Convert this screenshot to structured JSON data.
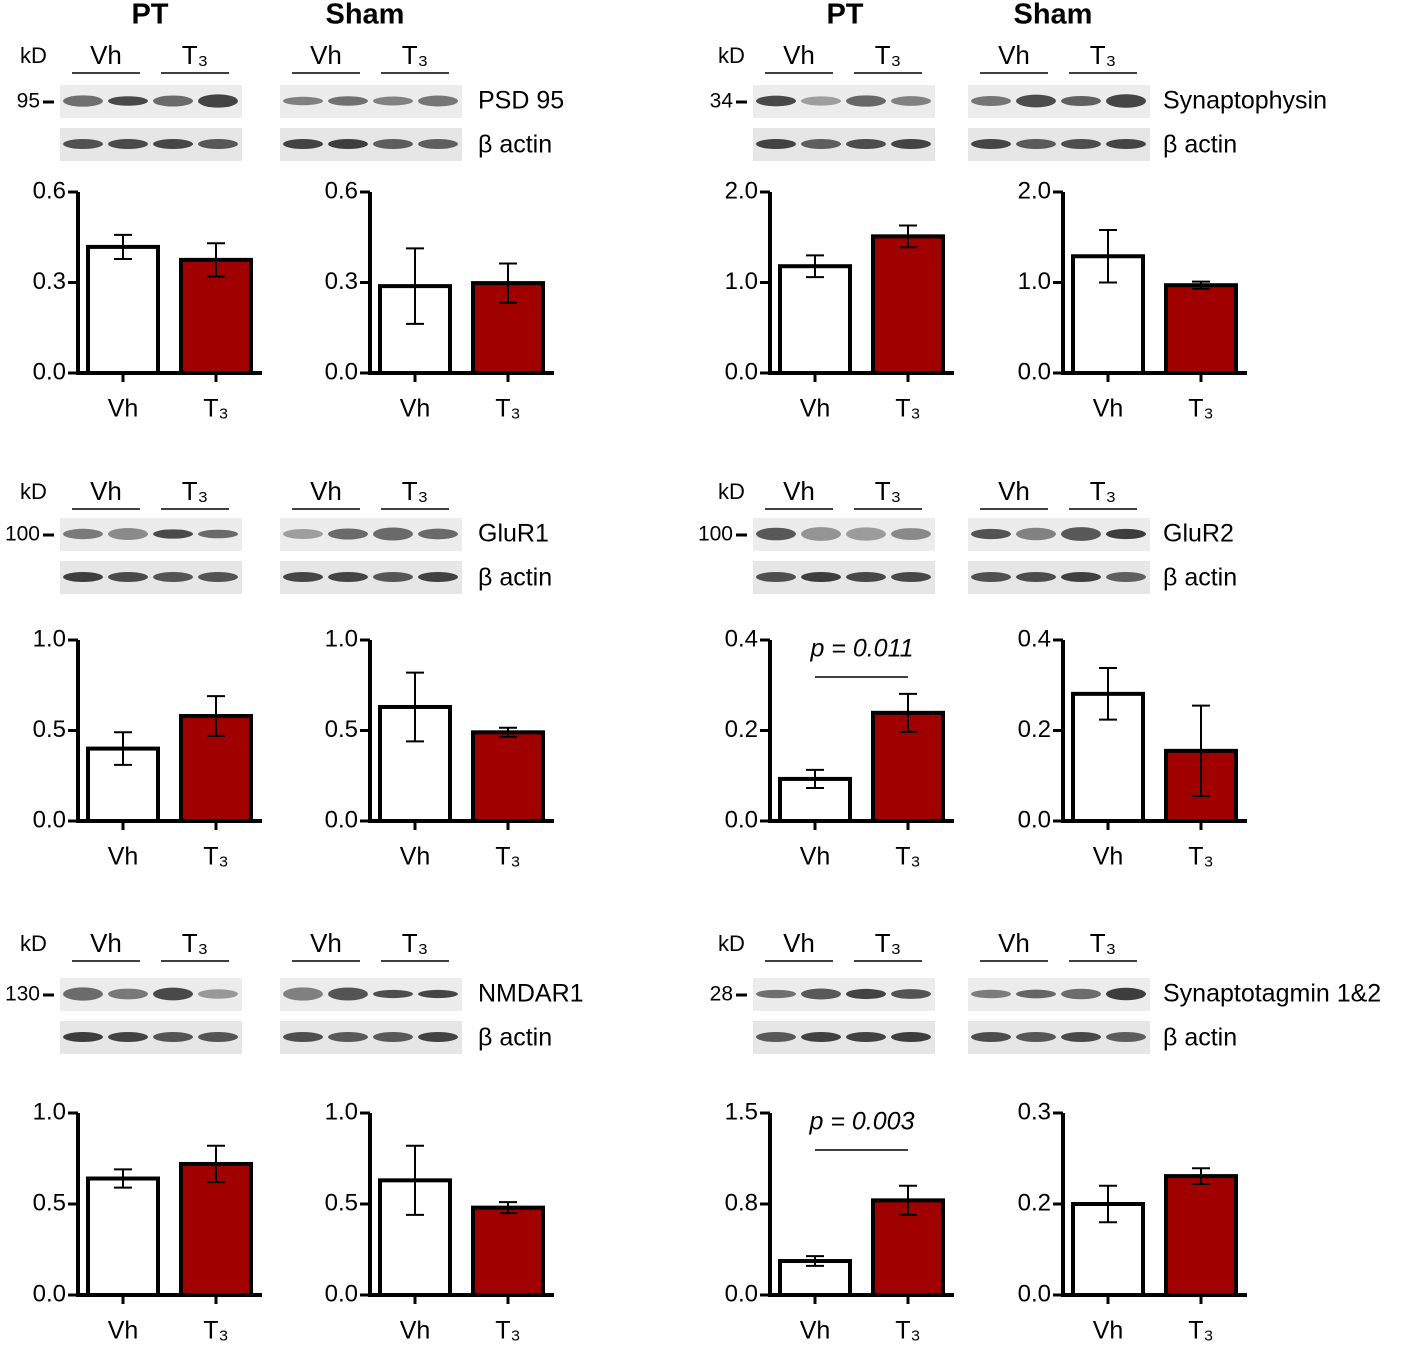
{
  "headers": [
    "PT",
    "Sham",
    "PT",
    "Sham"
  ],
  "blots": [
    {
      "kd": "kD",
      "marker": "95",
      "lanes": [
        "Vh",
        "T₃",
        "Vh",
        "T₃"
      ],
      "protein": "PSD 95",
      "loading": "β actin"
    },
    {
      "kd": "kD",
      "marker": "34",
      "lanes": [
        "Vh",
        "T₃",
        "Vh",
        "T₃"
      ],
      "protein": "Synaptophysin",
      "loading": "β actin"
    },
    {
      "kd": "kD",
      "marker": "100",
      "lanes": [
        "Vh",
        "T₃",
        "Vh",
        "T₃"
      ],
      "protein": "GluR1",
      "loading": "β actin"
    },
    {
      "kd": "kD",
      "marker": "100",
      "lanes": [
        "Vh",
        "T₃",
        "Vh",
        "T₃"
      ],
      "protein": "GluR2",
      "loading": "β actin"
    },
    {
      "kd": "kD",
      "marker": "130",
      "lanes": [
        "Vh",
        "T₃",
        "Vh",
        "T₃"
      ],
      "protein": "NMDAR1",
      "loading": "β actin"
    },
    {
      "kd": "kD",
      "marker": "28",
      "lanes": [
        "Vh",
        "T₃",
        "Vh",
        "T₃"
      ],
      "protein": "Synaptotagmin 1&2",
      "loading": "β actin"
    }
  ],
  "chart_data": [
    {
      "type": "bar",
      "categories": [
        "Vh",
        "T₃"
      ],
      "values": [
        0.418,
        0.375
      ],
      "errors": [
        0.04,
        0.055
      ],
      "colors": [
        "#ffffff",
        "#a00000"
      ],
      "ylim": [
        0,
        0.6
      ],
      "yticks": [
        {
          "value": 0,
          "label": "0.0"
        },
        0.3,
        0.6
      ]
    },
    {
      "type": "bar",
      "categories": [
        "Vh",
        "T₃"
      ],
      "values": [
        0.288,
        0.298
      ],
      "errors": [
        0.125,
        0.065
      ],
      "colors": [
        "#ffffff",
        "#a00000"
      ],
      "ylim": [
        0,
        0.6
      ],
      "yticks": [
        {
          "value": 0,
          "label": "0.0"
        },
        0.3,
        0.6
      ]
    },
    {
      "type": "bar",
      "categories": [
        "Vh",
        "T₃"
      ],
      "values": [
        1.18,
        1.51
      ],
      "errors": [
        0.12,
        0.12
      ],
      "colors": [
        "#ffffff",
        "#a00000"
      ],
      "ylim": [
        0,
        2
      ],
      "yticks": [
        {
          "value": 0,
          "label": "0.0"
        },
        {
          "value": 1,
          "label": "1.0"
        },
        {
          "value": 2,
          "label": "2.0"
        }
      ]
    },
    {
      "type": "bar",
      "categories": [
        "Vh",
        "T₃"
      ],
      "values": [
        1.29,
        0.97
      ],
      "errors": [
        0.29,
        0.04
      ],
      "colors": [
        "#ffffff",
        "#a00000"
      ],
      "ylim": [
        0,
        2
      ],
      "yticks": [
        {
          "value": 0,
          "label": "0.0"
        },
        {
          "value": 1,
          "label": "1.0"
        },
        {
          "value": 2,
          "label": "2.0"
        }
      ]
    },
    {
      "type": "bar",
      "categories": [
        "Vh",
        "T₃"
      ],
      "values": [
        0.4,
        0.58
      ],
      "errors": [
        0.09,
        0.11
      ],
      "colors": [
        "#ffffff",
        "#a00000"
      ],
      "ylim": [
        0,
        1
      ],
      "yticks": [
        {
          "value": 0,
          "label": "0.0"
        },
        0.5,
        {
          "value": 1,
          "label": "1.0"
        }
      ]
    },
    {
      "type": "bar",
      "categories": [
        "Vh",
        "T₃"
      ],
      "values": [
        0.63,
        0.49
      ],
      "errors": [
        0.19,
        0.025
      ],
      "colors": [
        "#ffffff",
        "#a00000"
      ],
      "ylim": [
        0,
        1
      ],
      "yticks": [
        {
          "value": 0,
          "label": "0.0"
        },
        0.5,
        {
          "value": 1,
          "label": "1.0"
        }
      ]
    },
    {
      "type": "bar",
      "categories": [
        "Vh",
        "T₃"
      ],
      "values": [
        0.093,
        0.239
      ],
      "errors": [
        0.02,
        0.042
      ],
      "colors": [
        "#ffffff",
        "#a00000"
      ],
      "ylim": [
        0,
        0.4
      ],
      "yticks": [
        {
          "value": 0,
          "label": "0.0"
        },
        0.2,
        0.4
      ],
      "annotation": "p = 0.011"
    },
    {
      "type": "bar",
      "categories": [
        "Vh",
        "T₃"
      ],
      "values": [
        0.281,
        0.155
      ],
      "errors": [
        0.057,
        0.1
      ],
      "colors": [
        "#ffffff",
        "#a00000"
      ],
      "ylim": [
        0,
        0.4
      ],
      "yticks": [
        {
          "value": 0,
          "label": "0.0"
        },
        0.2,
        0.4
      ]
    },
    {
      "type": "bar",
      "categories": [
        "Vh",
        "T₃"
      ],
      "values": [
        0.64,
        0.72
      ],
      "errors": [
        0.05,
        0.1
      ],
      "colors": [
        "#ffffff",
        "#a00000"
      ],
      "ylim": [
        0,
        1
      ],
      "yticks": [
        {
          "value": 0,
          "label": "0.0"
        },
        0.5,
        {
          "value": 1,
          "label": "1.0"
        }
      ]
    },
    {
      "type": "bar",
      "categories": [
        "Vh",
        "T₃"
      ],
      "values": [
        0.63,
        0.48
      ],
      "errors": [
        0.19,
        0.03
      ],
      "colors": [
        "#ffffff",
        "#a00000"
      ],
      "ylim": [
        0,
        1
      ],
      "yticks": [
        {
          "value": 0,
          "label": "0.0"
        },
        0.5,
        {
          "value": 1,
          "label": "1.0"
        }
      ]
    },
    {
      "type": "bar",
      "categories": [
        "Vh",
        "T₃"
      ],
      "values": [
        0.28,
        0.78
      ],
      "errors": [
        0.04,
        0.12
      ],
      "colors": [
        "#ffffff",
        "#a00000"
      ],
      "ylim": [
        0,
        1.5
      ],
      "yticks": [
        {
          "value": 0,
          "label": "0.0"
        },
        {
          "value": 0.75,
          "label": "0.8"
        },
        1.5
      ],
      "annotation": "p = 0.003"
    },
    {
      "type": "bar",
      "categories": [
        "Vh",
        "T₃"
      ],
      "values": [
        0.15,
        0.196
      ],
      "errors": [
        0.03,
        0.013
      ],
      "colors": [
        "#ffffff",
        "#a00000"
      ],
      "ylim": [
        0,
        0.3
      ],
      "yticks": [
        {
          "value": 0,
          "label": "0.0"
        },
        {
          "value": 0.15,
          "label": "0.2"
        },
        0.3
      ]
    }
  ]
}
